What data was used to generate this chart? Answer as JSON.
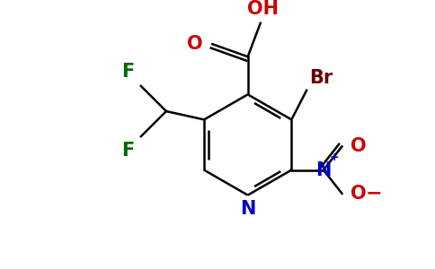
{
  "background_color": "#ffffff",
  "figsize": [
    4.84,
    3.0
  ],
  "dpi": 100,
  "ring_color": "#000000",
  "lw": 1.8,
  "fs": 14,
  "colors": {
    "N": "#0000cc",
    "O": "#cc0000",
    "F": "#006600",
    "Br": "#660000",
    "bond": "#000000"
  }
}
